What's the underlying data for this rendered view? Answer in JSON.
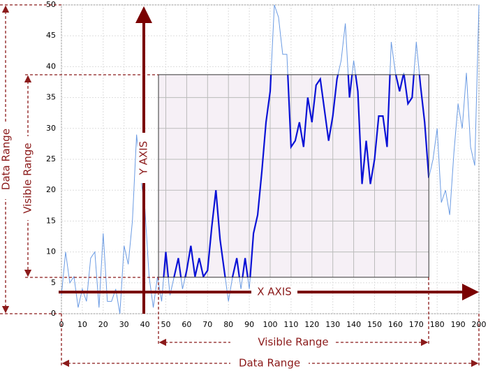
{
  "chart_data": {
    "type": "line",
    "x": [
      0,
      2,
      4,
      6,
      8,
      10,
      12,
      14,
      16,
      18,
      20,
      22,
      24,
      26,
      28,
      30,
      32,
      34,
      36,
      38,
      40,
      42,
      44,
      46,
      48,
      50,
      52,
      54,
      56,
      58,
      60,
      62,
      64,
      66,
      68,
      70,
      72,
      74,
      76,
      78,
      80,
      82,
      84,
      86,
      88,
      90,
      92,
      94,
      96,
      98,
      100,
      102,
      104,
      106,
      108,
      110,
      112,
      114,
      116,
      118,
      120,
      122,
      124,
      126,
      128,
      130,
      132,
      134,
      136,
      138,
      140,
      142,
      144,
      146,
      148,
      150,
      152,
      154,
      156,
      158,
      160,
      162,
      164,
      166,
      168,
      170,
      172,
      174,
      176,
      178,
      180,
      182,
      184,
      186,
      188,
      190,
      192,
      194,
      196,
      198,
      200
    ],
    "series": [
      {
        "color": "#6b9be3",
        "values": [
          3,
          10,
          5,
          6,
          1,
          4,
          2,
          9,
          10,
          1,
          13,
          2,
          2,
          4,
          0,
          11,
          8,
          15,
          29,
          22,
          17,
          6,
          1,
          6,
          2,
          10,
          3,
          6,
          9,
          4,
          7,
          11,
          6,
          9,
          6,
          7,
          14,
          20,
          12,
          7,
          2,
          6,
          9,
          4,
          9,
          4,
          13,
          16,
          23,
          31,
          36,
          50,
          48,
          42,
          42,
          27,
          28,
          31,
          27,
          35,
          31,
          37,
          38,
          33,
          28,
          32,
          38,
          41,
          47,
          35,
          41,
          36,
          21,
          28,
          21,
          25,
          32,
          32,
          27,
          44,
          39,
          36,
          39,
          34,
          35,
          44,
          37,
          31,
          22,
          25,
          30,
          18,
          20,
          16,
          26,
          34,
          30,
          39,
          27,
          24,
          50
        ]
      }
    ],
    "visible_color": "#0a12d6",
    "xlim": [
      0,
      200
    ],
    "ylim": [
      0,
      50
    ],
    "xticks": [
      0,
      10,
      20,
      30,
      40,
      50,
      60,
      70,
      80,
      90,
      100,
      110,
      120,
      130,
      140,
      150,
      160,
      170,
      180,
      190,
      200
    ],
    "yticks": [
      0,
      5,
      10,
      15,
      20,
      25,
      30,
      35,
      40,
      45,
      50
    ],
    "visible_xlim": [
      46.5,
      176
    ],
    "visible_ylim": [
      5.9,
      38.7
    ],
    "grid": true,
    "x_axis_label": "X AXIS",
    "y_axis_label": "Y AXIS",
    "visible_range_x_label": "Visible Range",
    "visible_range_y_label": "Visible Range",
    "data_range_x_label": "Data Range",
    "data_range_y_label": "Data Range"
  }
}
